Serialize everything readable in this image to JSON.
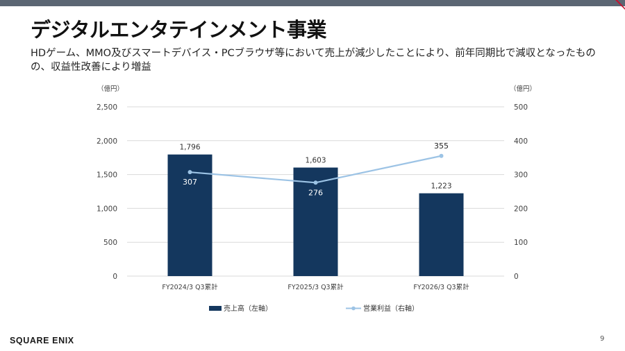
{
  "slide": {
    "title": "デジタルエンタテインメント事業",
    "subtitle": "HDゲーム、MMO及びスマートデバイス・PCブラウザ等において売上が減少したことにより、前年同期比で減収となったものの、収益性改善により増益",
    "logo_text": "SQUARE ENIX",
    "page_number": "9"
  },
  "colors": {
    "band": "#5b6673",
    "accent": "#c8102e",
    "bar": "#14375e",
    "line": "#9cc3e5",
    "grid": "#d9d9d9",
    "axis_text": "#404040"
  },
  "chart_data": {
    "type": "bar",
    "categories": [
      "FY2024/3 Q3累計",
      "FY2025/3 Q3累計",
      "FY2026/3 Q3累計"
    ],
    "series": [
      {
        "name": "売上高（左軸）",
        "type": "bar",
        "axis": "left",
        "values": [
          1796,
          1603,
          1223
        ],
        "labels": [
          "1,796",
          "1,603",
          "1,223"
        ]
      },
      {
        "name": "営業利益（右軸）",
        "type": "line",
        "axis": "right",
        "values": [
          307,
          276,
          355
        ],
        "labels": [
          "307",
          "276",
          "355"
        ]
      }
    ],
    "left_axis": {
      "unit": "（億円）",
      "range": [
        0,
        2500
      ],
      "ticks": [
        0,
        500,
        1000,
        1500,
        2000,
        2500
      ],
      "tick_labels": [
        "0",
        "500",
        "1,000",
        "1,500",
        "2,000",
        "2,500"
      ]
    },
    "right_axis": {
      "unit": "（億円）",
      "range": [
        0,
        500
      ],
      "ticks": [
        0,
        100,
        200,
        300,
        400,
        500
      ],
      "tick_labels": [
        "0",
        "100",
        "200",
        "300",
        "400",
        "500"
      ]
    },
    "grid": true,
    "legend_position": "bottom"
  }
}
